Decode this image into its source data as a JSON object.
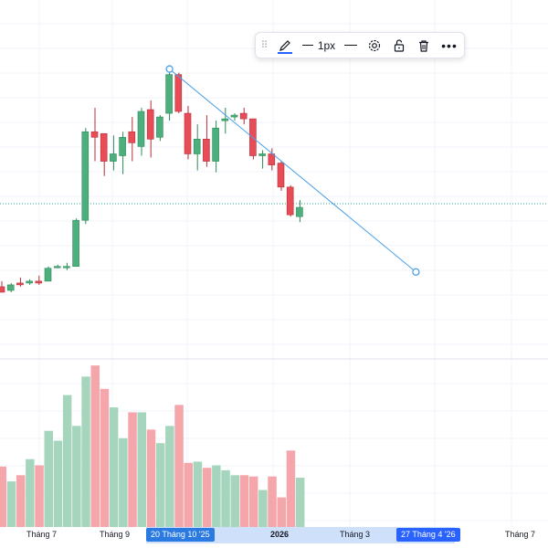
{
  "toolbar": {
    "line_width_label": "1px",
    "icons": [
      "drag-handle-icon",
      "pencil-icon",
      "line-width-icon",
      "line-style-icon",
      "settings-icon",
      "lock-icon",
      "trash-icon",
      "more-icon"
    ]
  },
  "x_axis": {
    "labels": [
      "Tháng 7",
      "Tháng 9",
      "2026",
      "Tháng 3",
      "Tháng 7"
    ],
    "highlight_start": "20 Tháng 10 '25",
    "highlight_end": "27 Tháng 4 '26"
  },
  "colors": {
    "up": "#4caf7d",
    "down": "#e84c57",
    "vol_up": "#a5d6bd",
    "vol_down": "#f4a6ab",
    "trend_line": "#4aa0e8",
    "axis_highlight": "#2962ff"
  },
  "chart_data": {
    "type": "candlestick",
    "candles": [
      {
        "o": 52,
        "h": 53.5,
        "l": 50.5,
        "c": 50.5,
        "v": 49
      },
      {
        "o": 51,
        "h": 53,
        "l": 50.5,
        "c": 52.5,
        "v": 37
      },
      {
        "o": 53,
        "h": 54.5,
        "l": 52,
        "c": 52.5,
        "v": 42
      },
      {
        "o": 53,
        "h": 54,
        "l": 52.5,
        "c": 53.5,
        "v": 55
      },
      {
        "o": 53.5,
        "h": 55,
        "l": 52.5,
        "c": 53,
        "v": 50
      },
      {
        "o": 53.5,
        "h": 57.5,
        "l": 53.5,
        "c": 57,
        "v": 78
      },
      {
        "o": 57.5,
        "h": 58,
        "l": 57,
        "c": 57.5,
        "v": 70
      },
      {
        "o": 57.5,
        "h": 58.5,
        "l": 56.5,
        "c": 57.5,
        "v": 107
      },
      {
        "o": 57.5,
        "h": 70.5,
        "l": 57.5,
        "c": 70,
        "v": 82
      },
      {
        "o": 70,
        "h": 95,
        "l": 69,
        "c": 94,
        "v": 122
      },
      {
        "o": 94,
        "h": 100.5,
        "l": 86,
        "c": 92.5,
        "v": 131
      },
      {
        "o": 93.5,
        "h": 93.5,
        "l": 82,
        "c": 86,
        "v": 112
      },
      {
        "o": 86,
        "h": 93,
        "l": 83.5,
        "c": 88,
        "v": 97
      },
      {
        "o": 87.5,
        "h": 94,
        "l": 82.5,
        "c": 92.5,
        "v": 72
      },
      {
        "o": 94,
        "h": 98,
        "l": 86,
        "c": 91,
        "v": 93
      },
      {
        "o": 90,
        "h": 100.5,
        "l": 87.5,
        "c": 99.5,
        "v": 93
      },
      {
        "o": 100,
        "h": 102.5,
        "l": 87,
        "c": 92,
        "v": 79
      },
      {
        "o": 92.5,
        "h": 98.5,
        "l": 91.5,
        "c": 98,
        "v": 68
      },
      {
        "o": 99,
        "h": 111,
        "l": 97,
        "c": 109.5,
        "v": 82
      },
      {
        "o": 109.5,
        "h": 110,
        "l": 99,
        "c": 99.5,
        "v": 99
      },
      {
        "o": 99,
        "h": 101,
        "l": 86.5,
        "c": 88,
        "v": 52
      },
      {
        "o": 88,
        "h": 96,
        "l": 83.5,
        "c": 92,
        "v": 53
      },
      {
        "o": 92,
        "h": 98.5,
        "l": 84.5,
        "c": 86,
        "v": 48
      },
      {
        "o": 86,
        "h": 97,
        "l": 83,
        "c": 95,
        "v": 50
      },
      {
        "o": 97,
        "h": 100.5,
        "l": 93.5,
        "c": 97.5,
        "v": 46
      },
      {
        "o": 98,
        "h": 99,
        "l": 97,
        "c": 98.5,
        "v": 42
      },
      {
        "o": 99,
        "h": 100.5,
        "l": 96,
        "c": 97.5,
        "v": 42
      },
      {
        "o": 97.5,
        "h": 97.5,
        "l": 86.5,
        "c": 87.5,
        "v": 41
      },
      {
        "o": 87.5,
        "h": 89,
        "l": 84,
        "c": 88,
        "v": 30
      },
      {
        "o": 88,
        "h": 89.5,
        "l": 83.5,
        "c": 85,
        "v": 41
      },
      {
        "o": 85.5,
        "h": 86,
        "l": 78,
        "c": 79,
        "v": 24
      },
      {
        "o": 79,
        "h": 79.5,
        "l": 71,
        "c": 71.5,
        "v": 62
      },
      {
        "o": 71,
        "h": 75.5,
        "l": 69.5,
        "c": 73.5,
        "v": 40
      }
    ],
    "trend_line": {
      "from_candle": 18,
      "from_value": 111,
      "to_candle": 44.5,
      "to_value": 56
    },
    "reference_value": 74.5
  }
}
